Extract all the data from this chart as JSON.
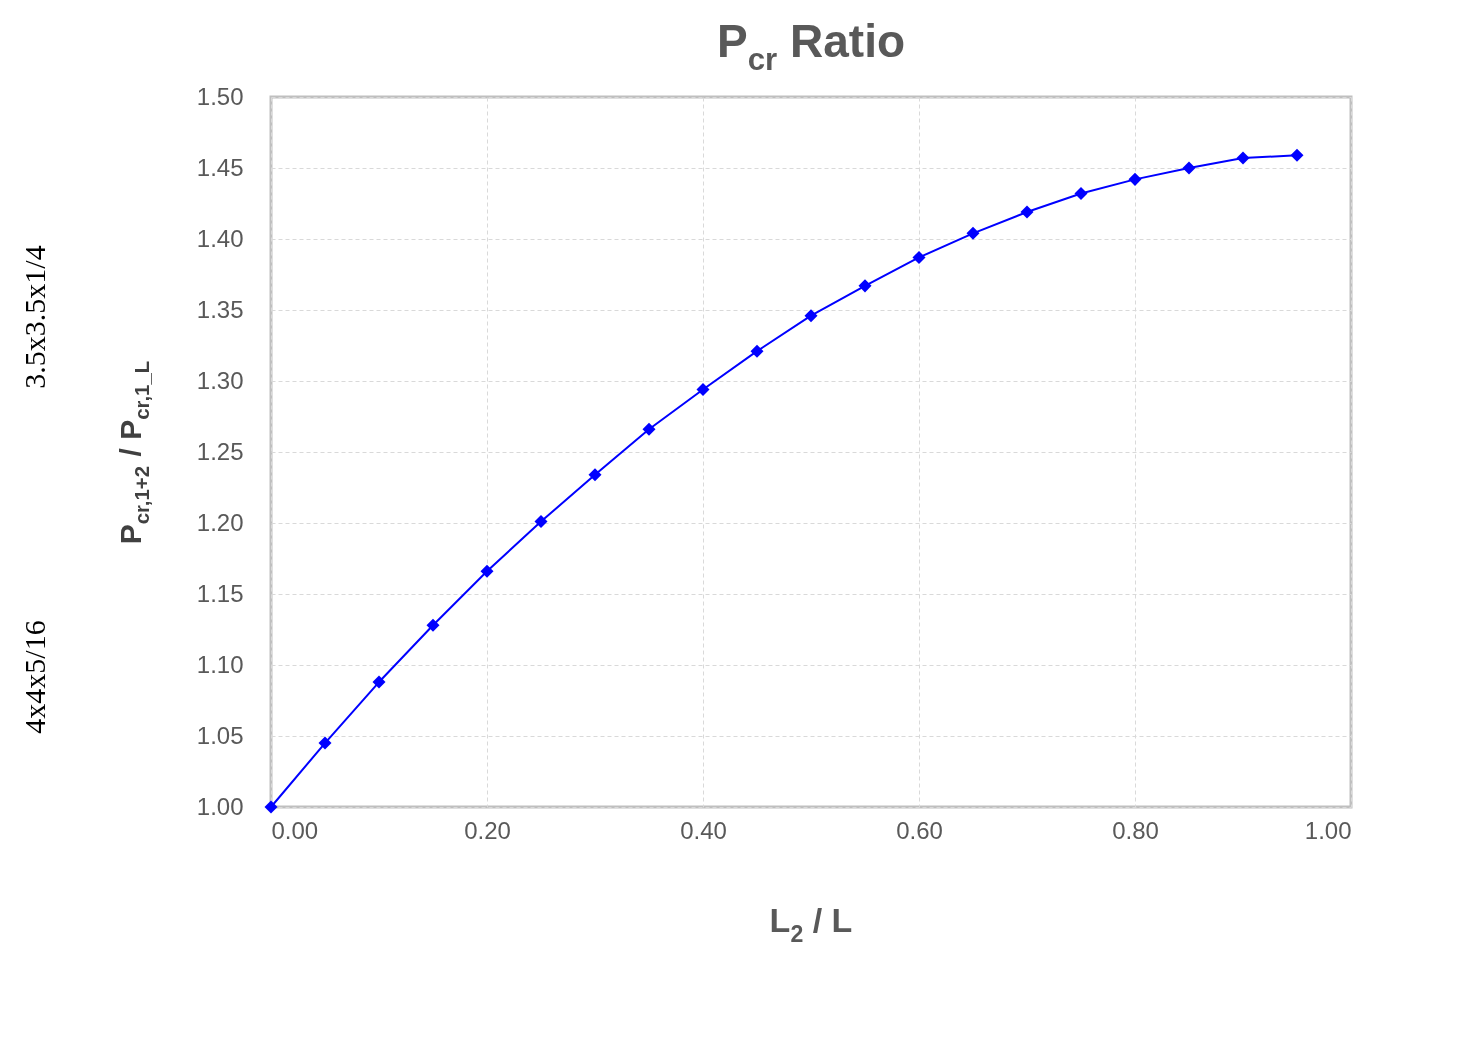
{
  "chart_data": {
    "type": "line",
    "title": "P$_{cr}$ Ratio",
    "xlabel": "L$_{2}$ / L",
    "ylabel": "P$_{cr,1+2}$ / P$_{cr,1_L}$",
    "x": [
      0.0,
      0.05,
      0.1,
      0.15,
      0.2,
      0.25,
      0.3,
      0.35,
      0.4,
      0.45,
      0.5,
      0.55,
      0.6,
      0.65,
      0.7,
      0.75,
      0.8,
      0.85,
      0.9,
      0.95
    ],
    "series": [
      {
        "color": "#0000ff",
        "values": [
          1.0,
          1.045,
          1.088,
          1.128,
          1.166,
          1.201,
          1.234,
          1.266,
          1.294,
          1.321,
          1.346,
          1.367,
          1.387,
          1.404,
          1.419,
          1.432,
          1.442,
          1.45,
          1.457,
          1.459
        ]
      }
    ],
    "xlim": [
      0,
      1
    ],
    "ylim": [
      1,
      1.5
    ],
    "xticks": [
      {
        "value": 0,
        "label": "0.00"
      },
      {
        "value": 0.2,
        "label": "0.20"
      },
      {
        "value": 0.4,
        "label": "0.40"
      },
      {
        "value": 0.6,
        "label": "0.60"
      },
      {
        "value": 0.8,
        "label": "0.80"
      },
      {
        "value": 1,
        "label": "1.00"
      }
    ],
    "yticks": [
      {
        "value": 1,
        "label": "1.00"
      },
      {
        "value": 1.05,
        "label": "1.05"
      },
      {
        "value": 1.1,
        "label": "1.10"
      },
      {
        "value": 1.15,
        "label": "1.15"
      },
      {
        "value": 1.2,
        "label": "1.20"
      },
      {
        "value": 1.25,
        "label": "1.25"
      },
      {
        "value": 1.3,
        "label": "1.30"
      },
      {
        "value": 1.35,
        "label": "1.35"
      },
      {
        "value": 1.4,
        "label": "1.40"
      },
      {
        "value": 1.45,
        "label": "1.45"
      },
      {
        "value": 1.5,
        "label": "1.50"
      }
    ],
    "grid": true,
    "marker": "diamond",
    "line_style": "solid",
    "legend": false,
    "annotations": [
      "3.5x3.5x1/4",
      "4x4x5/16"
    ]
  }
}
